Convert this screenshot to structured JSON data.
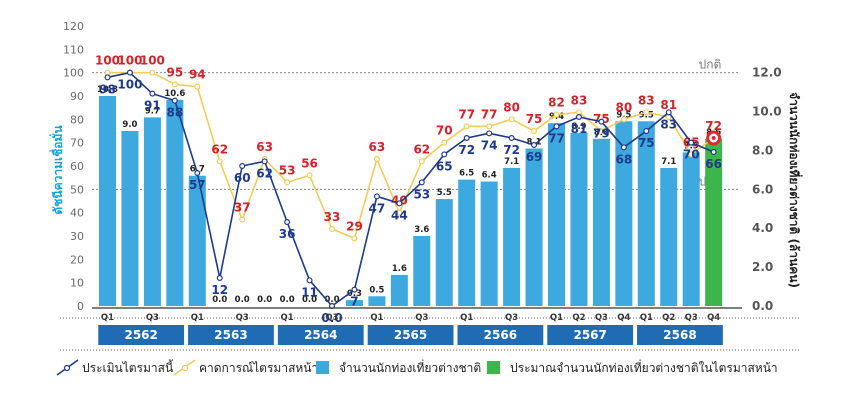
{
  "colors": {
    "bar": "#3da9de",
    "bar_forecast": "#3cb54a",
    "assessment_line": "#1f3a8a",
    "expectation_line": "#f2cc5b",
    "assessment_label": "#1f3a8a",
    "expectation_label": "#d2232a",
    "year_band": "#1f6cb4"
  },
  "chart_data": {
    "type": "bar",
    "left_axis": {
      "title": "ดัชนีความเชื่อมั่น",
      "ylim": [
        0,
        120
      ],
      "ticks": [
        "0",
        "10",
        "20",
        "30",
        "40",
        "50",
        "60",
        "70",
        "80",
        "90",
        "100",
        "110",
        "120"
      ]
    },
    "right_axis": {
      "title": "จำนวนนักท่องเที่ยวต่างชาติ (ล้านคน)",
      "ylim": [
        0,
        14.4
      ],
      "ticks": [
        "0.0",
        "2.0",
        "4.0",
        "6.0",
        "8.0",
        "10.0",
        "12.0"
      ]
    },
    "reference_lines": [
      {
        "label": "ปกติ",
        "value": 100
      },
      {
        "label": "ปกติ",
        "value": 50
      }
    ],
    "quarter_labels": [
      "Q1",
      "",
      "Q3",
      "",
      "Q1",
      "",
      "Q3",
      "",
      "Q1",
      "",
      "Q3",
      "",
      "Q1",
      "",
      "Q3",
      "",
      "Q1",
      "",
      "Q3",
      "",
      "Q1",
      "Q2",
      "Q3",
      "Q4",
      "Q1",
      "Q2",
      "Q3",
      "Q4"
    ],
    "years": [
      {
        "label": "2562",
        "start": 0,
        "end": 3
      },
      {
        "label": "2563",
        "start": 4,
        "end": 7
      },
      {
        "label": "2564",
        "start": 8,
        "end": 11
      },
      {
        "label": "2565",
        "start": 12,
        "end": 15
      },
      {
        "label": "2566",
        "start": 16,
        "end": 19
      },
      {
        "label": "2567",
        "start": 20,
        "end": 23
      },
      {
        "label": "2568",
        "start": 24,
        "end": 27
      }
    ],
    "series": [
      {
        "name": "จำนวนนักท่องเที่ยวต่างชาติ",
        "type": "bar",
        "axis": "right",
        "values": [
          10.8,
          9.0,
          9.7,
          10.6,
          6.7,
          0.0,
          0.0,
          0.0,
          0.0,
          0.0,
          0.0,
          0.3,
          0.5,
          1.6,
          3.6,
          5.5,
          6.5,
          6.4,
          7.1,
          8.1,
          9.4,
          8.9,
          8.6,
          9.5,
          9.5,
          7.1,
          7.9,
          8.6
        ],
        "labels": [
          "10.8",
          "9.0",
          "9.7",
          "10.6",
          "6.7",
          "0.0",
          "0.0",
          "0.0",
          "0.0",
          "0.0",
          "0.0",
          "0.3",
          "0.5",
          "1.6",
          "3.6",
          "5.5",
          "6.5",
          "6.4",
          "7.1",
          "8.1",
          "9.4",
          "8.9",
          "8.6",
          "9.5",
          "9.5",
          "7.1",
          "7.9",
          "8.6"
        ]
      },
      {
        "name": "ประเมินไตรมาสนี้",
        "type": "line",
        "axis": "left",
        "values": [
          98,
          100,
          91,
          88,
          57,
          12,
          60,
          62,
          36,
          11,
          0,
          7,
          47,
          44,
          53,
          65,
          72,
          74,
          72,
          69,
          77,
          81,
          79,
          68,
          75,
          83,
          70,
          66
        ],
        "labels": [
          "98",
          "100",
          "91",
          "88",
          "57",
          "12",
          "60",
          "62",
          "36",
          "11",
          "0.0",
          "7",
          "47",
          "44",
          "53",
          "65",
          "72",
          "74",
          "72",
          "69",
          "77",
          "81",
          "79",
          "68",
          "75",
          "83",
          "70",
          "66"
        ]
      },
      {
        "name": "คาดการณ์ไตรมาสหน้า",
        "type": "line",
        "axis": "left",
        "values": [
          100,
          100,
          100,
          95,
          94,
          62,
          37,
          63,
          53,
          56,
          33,
          29,
          63,
          40,
          62,
          70,
          77,
          77,
          80,
          75,
          82,
          83,
          75,
          80,
          83,
          81,
          65,
          72
        ],
        "labels": [
          "100",
          "100",
          "100",
          "95",
          "94",
          "62",
          "37",
          "63",
          "53",
          "56",
          "33",
          "29",
          "63",
          "40",
          "62",
          "70",
          "77",
          "77",
          "80",
          "75",
          "82",
          "83",
          "75",
          "80",
          "83",
          "81",
          "65",
          "72"
        ]
      }
    ],
    "legend": [
      {
        "name": "ประเมินไตรมาสนี้",
        "marker": "line-circle"
      },
      {
        "name": "คาดการณ์ไตรมาสหน้า",
        "marker": "line-circle"
      },
      {
        "name": "จำนวนนักท่องเที่ยวต่างชาติ",
        "marker": "square"
      },
      {
        "name": "ประมาณจำนวนนักท่องเที่ยวต่างชาติในไตรมาสหน้า",
        "marker": "square"
      }
    ],
    "legend_position": "bottom"
  }
}
